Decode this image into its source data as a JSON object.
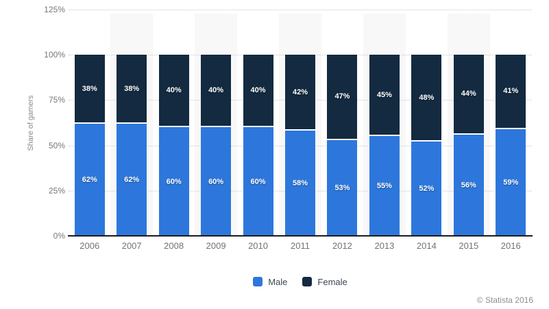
{
  "chart": {
    "footer": "© Statista 2016",
    "axis_line_color": "#1a1a1a",
    "gridline_color": "#c9c9c9",
    "band_color": "#f8f8f8"
  },
  "chart_data": {
    "type": "bar",
    "stacked": true,
    "title": "",
    "xlabel": "",
    "ylabel": "Share of gamers",
    "categories": [
      "2006",
      "2007",
      "2008",
      "2009",
      "2010",
      "2011",
      "2012",
      "2013",
      "2014",
      "2015",
      "2016"
    ],
    "series": [
      {
        "name": "Male",
        "color": "#2d77dc",
        "values": [
          62,
          62,
          60,
          60,
          60,
          58,
          53,
          55,
          52,
          56,
          59
        ]
      },
      {
        "name": "Female",
        "color": "#132a40",
        "values": [
          38,
          38,
          40,
          40,
          40,
          42,
          47,
          45,
          48,
          44,
          41
        ]
      }
    ],
    "value_suffix": "%",
    "data_labels": true,
    "ylim": [
      0,
      125
    ],
    "yticks": [
      {
        "pct": 0,
        "label": "0%"
      },
      {
        "pct": 25,
        "label": "25%"
      },
      {
        "pct": 50,
        "label": "50%"
      },
      {
        "pct": 75,
        "label": "75%"
      },
      {
        "pct": 100,
        "label": "100%"
      },
      {
        "pct": 125,
        "label": "125%"
      }
    ],
    "grid": "horizontal-dotted",
    "legend_position": "bottom-center",
    "alt_band_indices": [
      1,
      3,
      5,
      7,
      9
    ]
  }
}
